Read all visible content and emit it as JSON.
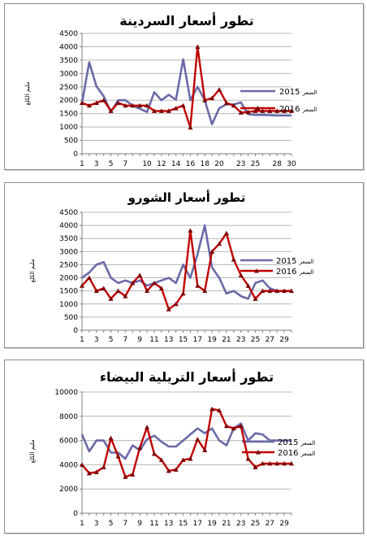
{
  "colors": {
    "series_2015": "#6a6aa8",
    "series_2016": "#c00000",
    "grid": "#b8b8b8",
    "axis": "#7f7f7f",
    "frame": "#8c8c8c"
  },
  "chart_data": [
    {
      "type": "line",
      "title": "تطور أسعار السردينة",
      "ylabel": "مليم الكلغ",
      "xlabel": "",
      "ylim": [
        0,
        4500
      ],
      "ystep": 500,
      "xticks": [
        1,
        3,
        5,
        7,
        10,
        12,
        14,
        16,
        18,
        20,
        23,
        25,
        28,
        30
      ],
      "grid": true,
      "legend_position": "right",
      "x": [
        1,
        2,
        3,
        4,
        5,
        6,
        7,
        8,
        9,
        10,
        11,
        12,
        13,
        14,
        15,
        16,
        17,
        18,
        19,
        20,
        21,
        22,
        23,
        24,
        25,
        26,
        27,
        28,
        29,
        30
      ],
      "series": [
        {
          "name": "2015 السعر",
          "legend_year": "2015",
          "legend_word": "السعر",
          "marker": "none",
          "values": [
            1900,
            3420,
            2520,
            2150,
            1560,
            2000,
            2000,
            1800,
            1680,
            1560,
            2300,
            2000,
            2200,
            2020,
            3530,
            2000,
            2500,
            2000,
            1100,
            1700,
            1850,
            1840,
            1920,
            1480,
            1450,
            1450,
            1440,
            1430,
            1430,
            1430
          ]
        },
        {
          "name": "2016 السعر",
          "legend_year": "2016",
          "legend_word": "السعر",
          "marker": "triangle",
          "values": [
            1900,
            1800,
            1900,
            2000,
            1600,
            1900,
            1800,
            1800,
            1800,
            1800,
            1600,
            1600,
            1600,
            1700,
            1800,
            980,
            4000,
            2000,
            2080,
            2400,
            1900,
            1800,
            1540,
            1560,
            1600,
            1600,
            1600,
            1600,
            1600,
            1600
          ]
        }
      ]
    },
    {
      "type": "line",
      "title": "تطور أسعار الشورو",
      "ylabel": "مليم الكلغ",
      "xlabel": "",
      "ylim": [
        0,
        4500
      ],
      "ystep": 500,
      "xticks": [
        1,
        3,
        5,
        7,
        9,
        11,
        13,
        15,
        17,
        19,
        21,
        23,
        25,
        27,
        29
      ],
      "grid": true,
      "legend_position": "right",
      "x": [
        1,
        2,
        3,
        4,
        5,
        6,
        7,
        8,
        9,
        10,
        11,
        12,
        13,
        14,
        15,
        16,
        17,
        18,
        19,
        20,
        21,
        22,
        23,
        24,
        25,
        26,
        27,
        28,
        29,
        30
      ],
      "series": [
        {
          "name": "2015 السعر",
          "legend_year": "2015",
          "legend_word": "السعر",
          "marker": "none",
          "values": [
            2000,
            2200,
            2500,
            2600,
            2000,
            1800,
            1900,
            1800,
            1900,
            1700,
            1800,
            1900,
            2000,
            1800,
            2500,
            2000,
            2900,
            4000,
            2400,
            2000,
            1400,
            1500,
            1300,
            1200,
            1800,
            1900,
            1600,
            1500,
            1500,
            1500
          ]
        },
        {
          "name": "2016 السعر",
          "legend_year": "2016",
          "legend_word": "السعر",
          "marker": "triangle",
          "values": [
            1700,
            2000,
            1500,
            1600,
            1200,
            1500,
            1300,
            1800,
            2100,
            1500,
            1800,
            1600,
            800,
            1000,
            1400,
            3800,
            1700,
            1500,
            3000,
            3300,
            3700,
            2700,
            2100,
            1700,
            1200,
            1500,
            1500,
            1500,
            1500,
            1500
          ]
        }
      ]
    },
    {
      "type": "line",
      "title": "تطور أسعار التريلية البيضاء",
      "ylabel": "مليم الكلغ",
      "xlabel": "",
      "ylim": [
        0,
        10000
      ],
      "ystep": 2000,
      "xticks": [
        1,
        3,
        5,
        7,
        9,
        11,
        13,
        15,
        17,
        19,
        21,
        23,
        25,
        27,
        29
      ],
      "grid": true,
      "legend_position": "right",
      "x": [
        1,
        2,
        3,
        4,
        5,
        6,
        7,
        8,
        9,
        10,
        11,
        12,
        13,
        14,
        15,
        16,
        17,
        18,
        19,
        20,
        21,
        22,
        23,
        24,
        25,
        26,
        27,
        28,
        29,
        30
      ],
      "series": [
        {
          "name": "2015 السعر",
          "legend_year": "2015",
          "legend_word": "السعر",
          "marker": "none",
          "values": [
            6500,
            5100,
            6000,
            6000,
            5000,
            5000,
            4500,
            5600,
            5200,
            6100,
            6400,
            5900,
            5500,
            5500,
            6000,
            6500,
            7000,
            6600,
            7000,
            6000,
            5600,
            7000,
            7400,
            6000,
            6600,
            6500,
            6000,
            6000,
            6000,
            6000
          ]
        },
        {
          "name": "2016 السعر",
          "legend_year": "2016",
          "legend_word": "السعر",
          "marker": "triangle",
          "values": [
            4000,
            3300,
            3400,
            3800,
            6200,
            4700,
            3000,
            3200,
            5400,
            7100,
            4900,
            4400,
            3500,
            3600,
            4400,
            4500,
            6100,
            5200,
            8600,
            8500,
            7200,
            7000,
            7200,
            4500,
            3800,
            4100,
            4100,
            4100,
            4100,
            4100
          ]
        }
      ]
    }
  ]
}
